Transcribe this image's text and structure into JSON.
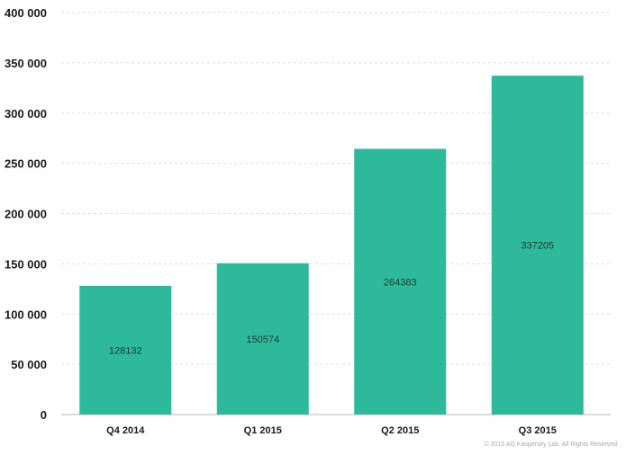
{
  "chart_data": {
    "type": "bar",
    "categories": [
      "Q4 2014",
      "Q1 2015",
      "Q2 2015",
      "Q3 2015"
    ],
    "values": [
      128132,
      150574,
      264383,
      337205
    ],
    "data_labels": [
      "128132",
      "150574",
      "264383",
      "337205"
    ],
    "y_ticks": [
      0,
      50000,
      100000,
      150000,
      200000,
      250000,
      300000,
      350000,
      400000
    ],
    "y_tick_labels": [
      "0",
      "50 000",
      "100 000",
      "150 000",
      "200 000",
      "250 000",
      "300 000",
      "350 000",
      "400 000"
    ],
    "ylim": [
      0,
      400000
    ],
    "grid": true,
    "bar_color": "#2dba9a",
    "grid_color": "#dddddd"
  },
  "footer": {
    "copyright": "© 2015 AO Kaspersky Lab. All Rights Reserved."
  }
}
